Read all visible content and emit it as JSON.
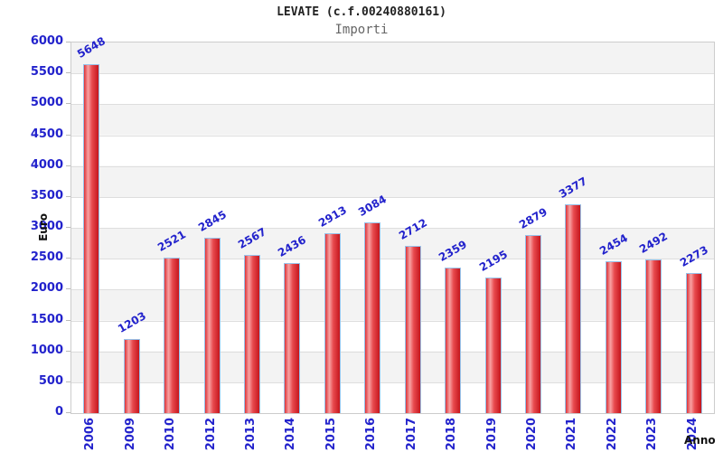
{
  "title": "LEVATE (c.f.00240880161)",
  "subtitle": "Importi",
  "chart_data": {
    "type": "bar",
    "title": "LEVATE (c.f.00240880161)",
    "subtitle": "Importi",
    "xlabel": "Anno",
    "ylabel": "Euro",
    "categories": [
      "2006",
      "2009",
      "2010",
      "2012",
      "2013",
      "2014",
      "2015",
      "2016",
      "2017",
      "2018",
      "2019",
      "2020",
      "2021",
      "2022",
      "2023",
      "2024"
    ],
    "values": [
      5648,
      1203,
      2521,
      2845,
      2567,
      2436,
      2913,
      3084,
      2712,
      2359,
      2195,
      2879,
      3377,
      2454,
      2492,
      2273
    ],
    "ylim": [
      0,
      6000
    ],
    "ytick_step": 500,
    "yticks": [
      0,
      500,
      1000,
      1500,
      2000,
      2500,
      3000,
      3500,
      4000,
      4500,
      5000,
      5500,
      6000
    ],
    "grid": "horizontal-bands",
    "legend": "none",
    "colors": {
      "label_blue": "#2222cc",
      "bar_gradient": [
        "#dd3338",
        "#f8a2a3",
        "#e84a4e",
        "#c5161d"
      ],
      "bar_border": "#97c2ea",
      "band_gray": "#f3f3f3",
      "band_white": "#ffffff",
      "grid_line": "#dedede",
      "plot_border": "#cccccc",
      "title_color": "#222222",
      "subtitle_color": "#666666",
      "axis_title_color": "#111111"
    }
  }
}
